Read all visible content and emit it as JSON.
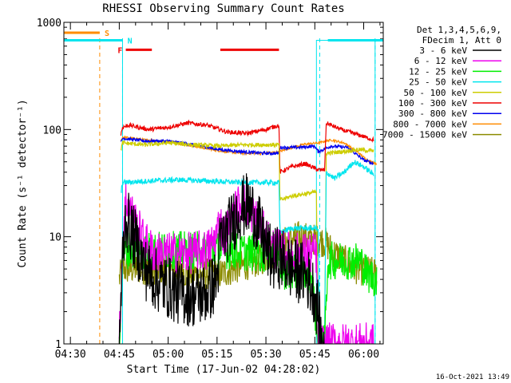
{
  "chart_data": {
    "type": "line",
    "title": "RHESSI Observing Summary Count Rates",
    "xlabel": "Start Time (17-Jun-02 04:28:02)",
    "ylabel": "Count Rate (s⁻¹ detector⁻¹)",
    "footer": "16-Oct-2021 13:49",
    "x_unit": "minutes after 04:28:02",
    "xlim": [
      0,
      98
    ],
    "ylim": [
      1,
      1000
    ],
    "yscale": "log",
    "x_ticks": [
      {
        "value": 2,
        "label": "04:30"
      },
      {
        "value": 17,
        "label": "04:45"
      },
      {
        "value": 32,
        "label": "05:00"
      },
      {
        "value": 47,
        "label": "05:15"
      },
      {
        "value": 62,
        "label": "05:30"
      },
      {
        "value": 77,
        "label": "05:45"
      },
      {
        "value": 92,
        "label": "06:00"
      }
    ],
    "y_ticks": [
      {
        "value": 1,
        "label": "1"
      },
      {
        "value": 10,
        "label": "10"
      },
      {
        "value": 100,
        "label": "100"
      },
      {
        "value": 1000,
        "label": "1000"
      }
    ],
    "legend": {
      "position": "top-right",
      "header": [
        "Det 1,3,4,5,6,9,",
        "FDecim 1, Att 0"
      ]
    },
    "flags": [
      {
        "label": "S",
        "color": "#ff8c00",
        "y": 800,
        "segments": [
          [
            0,
            11
          ]
        ]
      },
      {
        "label": "N",
        "color": "#00e5ee",
        "y": 680,
        "segments": [
          [
            0,
            18
          ],
          [
            81,
            98
          ]
        ]
      },
      {
        "label": "F",
        "color": "#ee0000",
        "y": 555,
        "segments": [
          [
            19,
            27
          ],
          [
            48,
            66
          ]
        ]
      }
    ],
    "vlines": [
      {
        "x": 11,
        "color": "#ff8c00",
        "dash": true
      },
      {
        "x": 18,
        "color": "#00e5ee",
        "dash": true
      },
      {
        "x": 78.5,
        "color": "#00e5ee",
        "dash": true
      },
      {
        "x": 95.5,
        "color": "#00e5ee",
        "dash": true
      }
    ],
    "cyan_rects": [
      [
        0,
        1,
        18,
        680
      ],
      [
        77.5,
        1,
        95.5,
        680
      ]
    ],
    "series": [
      {
        "name": "3 - 6 keV",
        "color": "#000000",
        "noise": 0.3,
        "points": [
          [
            17,
            1
          ],
          [
            18,
            6
          ],
          [
            19,
            15
          ],
          [
            22,
            9
          ],
          [
            25,
            5
          ],
          [
            28,
            4
          ],
          [
            31,
            3.5
          ],
          [
            35,
            3
          ],
          [
            40,
            2.8
          ],
          [
            44,
            3
          ],
          [
            47,
            4
          ],
          [
            48,
            9
          ],
          [
            50,
            11
          ],
          [
            52,
            14
          ],
          [
            54,
            18
          ],
          [
            56,
            20
          ],
          [
            58,
            17
          ],
          [
            60,
            12
          ],
          [
            62,
            8
          ],
          [
            64,
            6
          ],
          [
            66,
            6.5
          ],
          [
            70,
            5
          ],
          [
            74,
            4.5
          ],
          [
            77,
            3
          ],
          [
            78,
            2
          ],
          [
            79,
            1
          ],
          [
            80,
            1
          ]
        ]
      },
      {
        "name": "6 - 12 keV",
        "color": "#ee00ee",
        "noise": 0.2,
        "points": [
          [
            17,
            1
          ],
          [
            18,
            9
          ],
          [
            19,
            22
          ],
          [
            21,
            16
          ],
          [
            24,
            10
          ],
          [
            26,
            8
          ],
          [
            28,
            7
          ],
          [
            32,
            7
          ],
          [
            38,
            7
          ],
          [
            44,
            7.5
          ],
          [
            46,
            9
          ],
          [
            48,
            14
          ],
          [
            49,
            10
          ],
          [
            52,
            16
          ],
          [
            54,
            21
          ],
          [
            56,
            20
          ],
          [
            58,
            16
          ],
          [
            60,
            13
          ],
          [
            62,
            10
          ],
          [
            64,
            8
          ],
          [
            66,
            7.5
          ],
          [
            70,
            7
          ],
          [
            76,
            7
          ],
          [
            77.5,
            7
          ],
          [
            78,
            1
          ],
          [
            95,
            1
          ]
        ]
      },
      {
        "name": "12 - 25 keV",
        "color": "#00ee00",
        "noise": 0.18,
        "points": [
          [
            17,
            1
          ],
          [
            18,
            7.5
          ],
          [
            30,
            7.5
          ],
          [
            40,
            7.5
          ],
          [
            50,
            7.5
          ],
          [
            60,
            7
          ],
          [
            66,
            6.8
          ],
          [
            67,
            5
          ],
          [
            69,
            4.5
          ],
          [
            72,
            4.5
          ],
          [
            76,
            4.5
          ],
          [
            78,
            1
          ],
          [
            80,
            1
          ],
          [
            81,
            6
          ],
          [
            85,
            6
          ],
          [
            88,
            6
          ],
          [
            91,
            6
          ],
          [
            93,
            4.5
          ],
          [
            96,
            4
          ]
        ]
      },
      {
        "name": "25 - 50 keV",
        "color": "#00e5ee",
        "noise": 0.025,
        "points": [
          [
            17.5,
            25
          ],
          [
            18,
            32
          ],
          [
            25,
            33
          ],
          [
            35,
            34
          ],
          [
            45,
            33
          ],
          [
            55,
            32
          ],
          [
            65,
            32
          ],
          [
            66,
            32
          ],
          [
            66.3,
            11
          ],
          [
            70,
            12
          ],
          [
            78,
            12
          ],
          [
            78.5,
            1
          ],
          [
            80,
            1
          ],
          [
            80.5,
            40
          ],
          [
            83,
            35
          ],
          [
            86,
            40
          ],
          [
            89,
            50
          ],
          [
            92,
            45
          ],
          [
            95,
            38
          ]
        ]
      },
      {
        "name": "50 - 100 keV",
        "color": "#cdcd00",
        "noise": 0.02,
        "points": [
          [
            17.5,
            65
          ],
          [
            18,
            75
          ],
          [
            25,
            72
          ],
          [
            32,
            75
          ],
          [
            40,
            72
          ],
          [
            48,
            70
          ],
          [
            55,
            72
          ],
          [
            62,
            72
          ],
          [
            66,
            72
          ],
          [
            66.3,
            22
          ],
          [
            70,
            24
          ],
          [
            77,
            26
          ],
          [
            77.5,
            26
          ],
          [
            78,
            1
          ],
          [
            80,
            1
          ],
          [
            80.5,
            60
          ],
          [
            85,
            62
          ],
          [
            90,
            65
          ],
          [
            95,
            63
          ]
        ]
      },
      {
        "name": "100 - 300 keV",
        "color": "#ee0000",
        "noise": 0.02,
        "points": [
          [
            17.5,
            90
          ],
          [
            18,
            105
          ],
          [
            20,
            110
          ],
          [
            26,
            100
          ],
          [
            32,
            105
          ],
          [
            38,
            115
          ],
          [
            44,
            110
          ],
          [
            50,
            95
          ],
          [
            56,
            92
          ],
          [
            62,
            100
          ],
          [
            65,
            108
          ],
          [
            66,
            108
          ],
          [
            66.3,
            40
          ],
          [
            70,
            45
          ],
          [
            74,
            48
          ],
          [
            78,
            42
          ],
          [
            80,
            42
          ],
          [
            80.5,
            115
          ],
          [
            85,
            100
          ],
          [
            90,
            90
          ],
          [
            95,
            80
          ]
        ]
      },
      {
        "name": "300 - 800 keV",
        "color": "#0000ee",
        "noise": 0.015,
        "points": [
          [
            17.5,
            75
          ],
          [
            18,
            83
          ],
          [
            25,
            78
          ],
          [
            32,
            78
          ],
          [
            40,
            72
          ],
          [
            48,
            65
          ],
          [
            55,
            62
          ],
          [
            62,
            60
          ],
          [
            66,
            60
          ],
          [
            66.3,
            68
          ],
          [
            72,
            68
          ],
          [
            77,
            70
          ],
          [
            78,
            62
          ],
          [
            82,
            70
          ],
          [
            87,
            68
          ],
          [
            92,
            52
          ],
          [
            95,
            48
          ]
        ]
      },
      {
        "name": "800 - 7000 keV",
        "color": "#ff8c00",
        "noise": 0.01,
        "points": [
          [
            17.5,
            78
          ],
          [
            18,
            85
          ],
          [
            25,
            80
          ],
          [
            32,
            77
          ],
          [
            40,
            70
          ],
          [
            48,
            63
          ],
          [
            55,
            60
          ],
          [
            62,
            60
          ],
          [
            66,
            62
          ],
          [
            70,
            68
          ],
          [
            74,
            73
          ],
          [
            78,
            75
          ],
          [
            82,
            80
          ],
          [
            86,
            75
          ],
          [
            90,
            62
          ],
          [
            93,
            52
          ],
          [
            96,
            48
          ]
        ]
      },
      {
        "name": "7000 - 15000 keV",
        "color": "#8b8b00",
        "noise": 0.15,
        "points": [
          [
            17,
            4
          ],
          [
            18,
            5
          ],
          [
            30,
            5
          ],
          [
            40,
            4.5
          ],
          [
            48,
            4.5
          ],
          [
            52,
            5
          ],
          [
            56,
            5.5
          ],
          [
            60,
            6
          ],
          [
            64,
            7
          ],
          [
            68,
            9
          ],
          [
            72,
            10
          ],
          [
            76,
            9.5
          ],
          [
            80,
            9
          ],
          [
            83,
            7
          ],
          [
            86,
            6
          ],
          [
            90,
            5
          ],
          [
            93,
            4.8
          ],
          [
            96,
            4.5
          ]
        ]
      }
    ]
  }
}
